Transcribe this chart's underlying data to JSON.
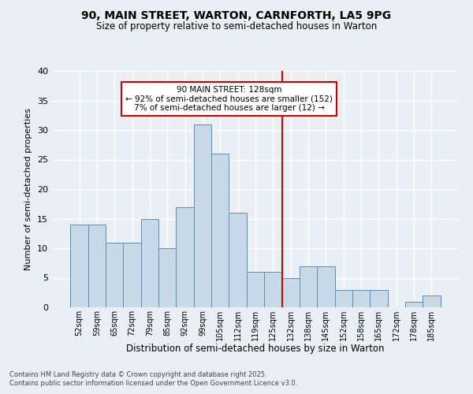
{
  "title1": "90, MAIN STREET, WARTON, CARNFORTH, LA5 9PG",
  "title2": "Size of property relative to semi-detached houses in Warton",
  "xlabel": "Distribution of semi-detached houses by size in Warton",
  "ylabel": "Number of semi-detached properties",
  "categories": [
    "52sqm",
    "59sqm",
    "65sqm",
    "72sqm",
    "79sqm",
    "85sqm",
    "92sqm",
    "99sqm",
    "105sqm",
    "112sqm",
    "119sqm",
    "125sqm",
    "132sqm",
    "138sqm",
    "145sqm",
    "152sqm",
    "158sqm",
    "165sqm",
    "172sqm",
    "178sqm",
    "185sqm"
  ],
  "values": [
    14,
    14,
    11,
    11,
    15,
    10,
    17,
    31,
    26,
    16,
    6,
    6,
    5,
    7,
    7,
    3,
    3,
    3,
    0,
    1,
    2
  ],
  "bar_color": "#c8d9e8",
  "bar_edgecolor": "#5b8db8",
  "pct_smaller": 92,
  "n_smaller": 152,
  "pct_larger": 7,
  "n_larger": 12,
  "vline_bin_index": 11,
  "ylim": [
    0,
    40
  ],
  "yticks": [
    0,
    5,
    10,
    15,
    20,
    25,
    30,
    35,
    40
  ],
  "footnote1": "Contains HM Land Registry data © Crown copyright and database right 2025.",
  "footnote2": "Contains public sector information licensed under the Open Government Licence v3.0.",
  "bg_color": "#eaeef5",
  "grid_color": "#ffffff",
  "box_edge_color": "#cc0000"
}
